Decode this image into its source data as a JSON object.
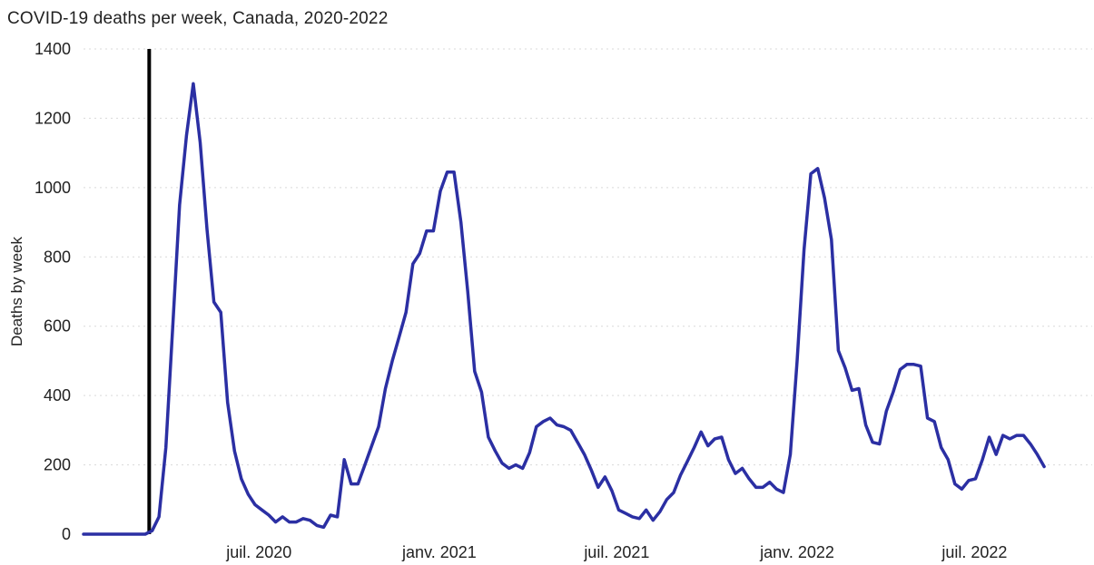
{
  "chart_data": {
    "type": "line",
    "title": "COVID-19 deaths per week, Canada, 2020-2022",
    "ylabel": "Deaths by week",
    "xlabel": "",
    "ylim": [
      0,
      1400
    ],
    "yticks": [
      0,
      200,
      400,
      600,
      800,
      1000,
      1200,
      1400
    ],
    "xlim": [
      "2020-01-04",
      "2022-10-29"
    ],
    "xticks": [
      {
        "date": "2020-07-01",
        "label": "juil. 2020"
      },
      {
        "date": "2021-01-01",
        "label": "janv. 2021"
      },
      {
        "date": "2021-07-01",
        "label": "juil. 2021"
      },
      {
        "date": "2022-01-01",
        "label": "janv. 2022"
      },
      {
        "date": "2022-07-01",
        "label": "juil. 2022"
      }
    ],
    "grid": true,
    "reference_line": {
      "date": "2020-03-11"
    },
    "line_color": "#2b2fa3",
    "series": [
      {
        "color": "#2b2fa3",
        "points": [
          [
            "2020-01-04",
            0
          ],
          [
            "2020-01-11",
            0
          ],
          [
            "2020-01-18",
            0
          ],
          [
            "2020-01-25",
            0
          ],
          [
            "2020-02-01",
            0
          ],
          [
            "2020-02-08",
            0
          ],
          [
            "2020-02-15",
            0
          ],
          [
            "2020-02-22",
            0
          ],
          [
            "2020-02-29",
            0
          ],
          [
            "2020-03-07",
            0
          ],
          [
            "2020-03-14",
            10
          ],
          [
            "2020-03-21",
            50
          ],
          [
            "2020-03-28",
            250
          ],
          [
            "2020-04-04",
            600
          ],
          [
            "2020-04-11",
            950
          ],
          [
            "2020-04-18",
            1150
          ],
          [
            "2020-04-25",
            1300
          ],
          [
            "2020-05-02",
            1130
          ],
          [
            "2020-05-09",
            880
          ],
          [
            "2020-05-16",
            670
          ],
          [
            "2020-05-23",
            640
          ],
          [
            "2020-05-30",
            380
          ],
          [
            "2020-06-06",
            240
          ],
          [
            "2020-06-13",
            160
          ],
          [
            "2020-06-20",
            115
          ],
          [
            "2020-06-27",
            85
          ],
          [
            "2020-07-04",
            70
          ],
          [
            "2020-07-11",
            55
          ],
          [
            "2020-07-18",
            35
          ],
          [
            "2020-07-25",
            50
          ],
          [
            "2020-08-01",
            35
          ],
          [
            "2020-08-08",
            35
          ],
          [
            "2020-08-15",
            45
          ],
          [
            "2020-08-22",
            40
          ],
          [
            "2020-08-29",
            25
          ],
          [
            "2020-09-05",
            20
          ],
          [
            "2020-09-12",
            55
          ],
          [
            "2020-09-19",
            50
          ],
          [
            "2020-09-26",
            215
          ],
          [
            "2020-10-03",
            145
          ],
          [
            "2020-10-10",
            145
          ],
          [
            "2020-10-17",
            200
          ],
          [
            "2020-10-24",
            255
          ],
          [
            "2020-10-31",
            310
          ],
          [
            "2020-11-07",
            420
          ],
          [
            "2020-11-14",
            500
          ],
          [
            "2020-11-21",
            570
          ],
          [
            "2020-11-28",
            640
          ],
          [
            "2020-12-05",
            780
          ],
          [
            "2020-12-12",
            810
          ],
          [
            "2020-12-19",
            875
          ],
          [
            "2020-12-26",
            875
          ],
          [
            "2021-01-02",
            990
          ],
          [
            "2021-01-09",
            1045
          ],
          [
            "2021-01-16",
            1045
          ],
          [
            "2021-01-23",
            900
          ],
          [
            "2021-01-30",
            700
          ],
          [
            "2021-02-06",
            470
          ],
          [
            "2021-02-13",
            410
          ],
          [
            "2021-02-20",
            280
          ],
          [
            "2021-02-27",
            240
          ],
          [
            "2021-03-06",
            205
          ],
          [
            "2021-03-13",
            190
          ],
          [
            "2021-03-20",
            200
          ],
          [
            "2021-03-27",
            190
          ],
          [
            "2021-04-03",
            235
          ],
          [
            "2021-04-10",
            310
          ],
          [
            "2021-04-17",
            325
          ],
          [
            "2021-04-24",
            335
          ],
          [
            "2021-05-01",
            315
          ],
          [
            "2021-05-08",
            310
          ],
          [
            "2021-05-15",
            300
          ],
          [
            "2021-05-22",
            265
          ],
          [
            "2021-05-29",
            230
          ],
          [
            "2021-06-05",
            185
          ],
          [
            "2021-06-12",
            135
          ],
          [
            "2021-06-19",
            165
          ],
          [
            "2021-06-26",
            125
          ],
          [
            "2021-07-03",
            70
          ],
          [
            "2021-07-10",
            60
          ],
          [
            "2021-07-17",
            50
          ],
          [
            "2021-07-24",
            45
          ],
          [
            "2021-07-31",
            70
          ],
          [
            "2021-08-07",
            40
          ],
          [
            "2021-08-14",
            65
          ],
          [
            "2021-08-21",
            100
          ],
          [
            "2021-08-28",
            120
          ],
          [
            "2021-09-04",
            170
          ],
          [
            "2021-09-11",
            210
          ],
          [
            "2021-09-18",
            250
          ],
          [
            "2021-09-25",
            295
          ],
          [
            "2021-10-02",
            255
          ],
          [
            "2021-10-09",
            275
          ],
          [
            "2021-10-16",
            280
          ],
          [
            "2021-10-23",
            215
          ],
          [
            "2021-10-30",
            175
          ],
          [
            "2021-11-06",
            190
          ],
          [
            "2021-11-13",
            160
          ],
          [
            "2021-11-20",
            135
          ],
          [
            "2021-11-27",
            135
          ],
          [
            "2021-12-04",
            150
          ],
          [
            "2021-12-11",
            130
          ],
          [
            "2021-12-18",
            120
          ],
          [
            "2021-12-25",
            230
          ],
          [
            "2022-01-01",
            500
          ],
          [
            "2022-01-08",
            820
          ],
          [
            "2022-01-15",
            1040
          ],
          [
            "2022-01-22",
            1055
          ],
          [
            "2022-01-29",
            970
          ],
          [
            "2022-02-05",
            850
          ],
          [
            "2022-02-12",
            530
          ],
          [
            "2022-02-19",
            480
          ],
          [
            "2022-02-26",
            415
          ],
          [
            "2022-03-05",
            420
          ],
          [
            "2022-03-12",
            315
          ],
          [
            "2022-03-19",
            265
          ],
          [
            "2022-03-26",
            260
          ],
          [
            "2022-04-02",
            355
          ],
          [
            "2022-04-09",
            410
          ],
          [
            "2022-04-16",
            475
          ],
          [
            "2022-04-23",
            490
          ],
          [
            "2022-04-30",
            490
          ],
          [
            "2022-05-07",
            485
          ],
          [
            "2022-05-14",
            335
          ],
          [
            "2022-05-21",
            325
          ],
          [
            "2022-05-28",
            250
          ],
          [
            "2022-06-04",
            215
          ],
          [
            "2022-06-11",
            145
          ],
          [
            "2022-06-18",
            130
          ],
          [
            "2022-06-25",
            155
          ],
          [
            "2022-07-02",
            160
          ],
          [
            "2022-07-09",
            215
          ],
          [
            "2022-07-16",
            280
          ],
          [
            "2022-07-23",
            230
          ],
          [
            "2022-07-30",
            285
          ],
          [
            "2022-08-06",
            275
          ],
          [
            "2022-08-13",
            285
          ],
          [
            "2022-08-20",
            285
          ],
          [
            "2022-08-27",
            260
          ],
          [
            "2022-09-03",
            230
          ],
          [
            "2022-09-10",
            195
          ]
        ]
      }
    ]
  }
}
